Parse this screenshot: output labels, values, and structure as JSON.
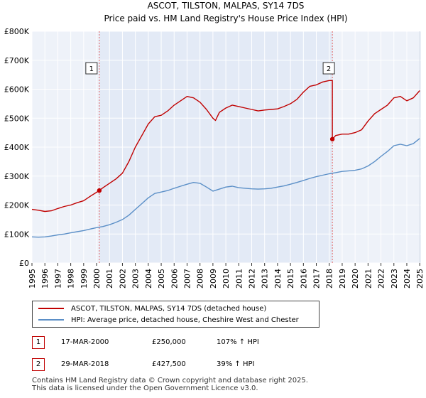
{
  "chart_data": {
    "type": "line",
    "title": "ASCOT, TILSTON, MALPAS, SY14 7DS",
    "subtitle": "Price paid vs. HM Land Registry's House Price Index (HPI)",
    "xlabel": "",
    "ylabel": "",
    "xlim": [
      1995,
      2025.1
    ],
    "ylim": [
      0,
      800000
    ],
    "x_ticks": [
      1995,
      1996,
      1997,
      1998,
      1999,
      2000,
      2001,
      2002,
      2003,
      2004,
      2005,
      2006,
      2007,
      2008,
      2009,
      2010,
      2011,
      2012,
      2013,
      2014,
      2015,
      2016,
      2017,
      2018,
      2019,
      2020,
      2021,
      2022,
      2023,
      2024,
      2025
    ],
    "y_ticks": [
      0,
      100000,
      200000,
      300000,
      400000,
      500000,
      600000,
      700000,
      800000
    ],
    "y_tick_labels": [
      "£0",
      "£100K",
      "£200K",
      "£300K",
      "£400K",
      "£500K",
      "£600K",
      "£700K",
      "£800K"
    ],
    "grid": true,
    "series": [
      {
        "name": "ASCOT, TILSTON, MALPAS, SY14 7DS (detached house)",
        "color": "#c00000",
        "x": [
          1995.0,
          1995.5,
          1996.0,
          1996.5,
          1997.0,
          1997.5,
          1998.0,
          1998.5,
          1999.0,
          1999.5,
          2000.21,
          2000.5,
          2001.0,
          2001.5,
          2002.0,
          2002.5,
          2003.0,
          2003.5,
          2004.0,
          2004.5,
          2005.0,
          2005.5,
          2006.0,
          2006.5,
          2007.0,
          2007.5,
          2008.0,
          2008.5,
          2009.0,
          2009.2,
          2009.5,
          2010.0,
          2010.5,
          2011.0,
          2011.5,
          2012.0,
          2012.5,
          2013.0,
          2013.5,
          2014.0,
          2014.5,
          2015.0,
          2015.5,
          2016.0,
          2016.5,
          2017.0,
          2017.5,
          2018.0,
          2018.24,
          2018.24,
          2018.5,
          2019.0,
          2019.5,
          2020.0,
          2020.5,
          2021.0,
          2021.5,
          2022.0,
          2022.5,
          2023.0,
          2023.5,
          2024.0,
          2024.5,
          2025.0
        ],
        "values": [
          185000,
          182000,
          178000,
          180000,
          188000,
          195000,
          200000,
          208000,
          215000,
          230000,
          250000,
          260000,
          275000,
          290000,
          310000,
          350000,
          400000,
          440000,
          480000,
          505000,
          510000,
          525000,
          545000,
          560000,
          575000,
          570000,
          555000,
          530000,
          500000,
          492000,
          520000,
          535000,
          545000,
          540000,
          535000,
          530000,
          525000,
          528000,
          530000,
          532000,
          540000,
          550000,
          565000,
          590000,
          610000,
          615000,
          625000,
          630000,
          630000,
          427500,
          440000,
          445000,
          445000,
          450000,
          460000,
          490000,
          515000,
          530000,
          545000,
          570000,
          575000,
          560000,
          570000,
          595000
        ]
      },
      {
        "name": "HPI: Average price, detached house, Cheshire West and Chester",
        "color": "#5b8fc7",
        "x": [
          1995.0,
          1995.5,
          1996.0,
          1996.5,
          1997.0,
          1997.5,
          1998.0,
          1998.5,
          1999.0,
          1999.5,
          2000.0,
          2000.5,
          2001.0,
          2001.5,
          2002.0,
          2002.5,
          2003.0,
          2003.5,
          2004.0,
          2004.5,
          2005.0,
          2005.5,
          2006.0,
          2006.5,
          2007.0,
          2007.5,
          2008.0,
          2008.5,
          2009.0,
          2009.5,
          2010.0,
          2010.5,
          2011.0,
          2011.5,
          2012.0,
          2012.5,
          2013.0,
          2013.5,
          2014.0,
          2014.5,
          2015.0,
          2015.5,
          2016.0,
          2016.5,
          2017.0,
          2017.5,
          2018.0,
          2018.5,
          2019.0,
          2019.5,
          2020.0,
          2020.5,
          2021.0,
          2021.5,
          2022.0,
          2022.5,
          2023.0,
          2023.5,
          2024.0,
          2024.5,
          2025.0
        ],
        "values": [
          90000,
          89000,
          90000,
          93000,
          97000,
          100000,
          104000,
          108000,
          112000,
          117000,
          122000,
          126000,
          132000,
          140000,
          150000,
          165000,
          185000,
          205000,
          225000,
          240000,
          245000,
          250000,
          258000,
          265000,
          272000,
          278000,
          275000,
          262000,
          248000,
          255000,
          262000,
          265000,
          260000,
          258000,
          256000,
          255000,
          256000,
          258000,
          262000,
          266000,
          272000,
          278000,
          285000,
          292000,
          298000,
          303000,
          308000,
          312000,
          316000,
          318000,
          320000,
          325000,
          335000,
          350000,
          368000,
          385000,
          405000,
          410000,
          405000,
          412000,
          430000
        ]
      }
    ],
    "sales": [
      {
        "id": "1",
        "x": 2000.21,
        "value": 250000
      },
      {
        "id": "2",
        "x": 2018.24,
        "value": 427500
      }
    ]
  },
  "legend": {
    "property_label": "ASCOT, TILSTON, MALPAS, SY14 7DS (detached house)",
    "hpi_label": "HPI: Average price, detached house, Cheshire West and Chester",
    "property_color": "#c00000",
    "hpi_color": "#5b8fc7"
  },
  "sales_table": [
    {
      "id": "1",
      "date": "17-MAR-2000",
      "price": "£250,000",
      "hpi": "107% ↑ HPI"
    },
    {
      "id": "2",
      "date": "29-MAR-2018",
      "price": "£427,500",
      "hpi": "39% ↑ HPI"
    }
  ],
  "footer": {
    "line1": "Contains HM Land Registry data © Crown copyright and database right 2025.",
    "line2": "This data is licensed under the Open Government Licence v3.0."
  }
}
